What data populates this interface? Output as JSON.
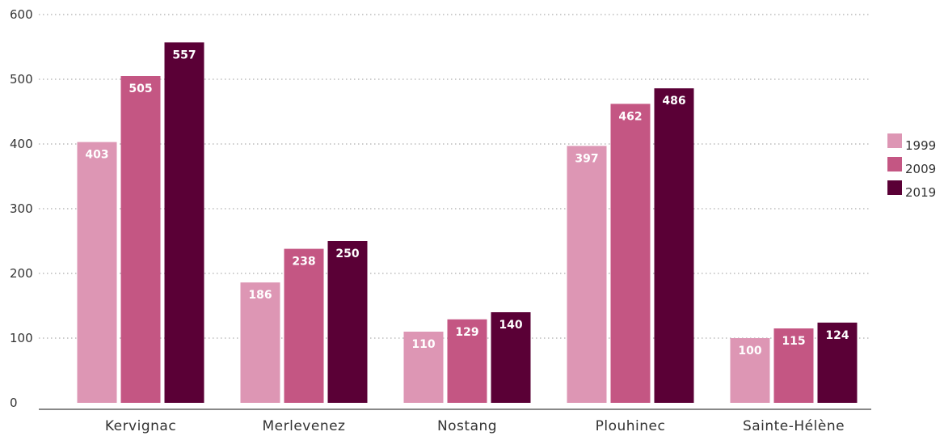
{
  "chart_data": {
    "type": "bar",
    "title": "",
    "xlabel": "",
    "ylabel": "",
    "ylim": [
      0,
      600
    ],
    "yticks": [
      0,
      100,
      200,
      300,
      400,
      500,
      600
    ],
    "grid": true,
    "legend_position": "right",
    "categories": [
      "Kervignac",
      "Merlevenez",
      "Nostang",
      "Plouhinec",
      "Sainte-Hélène"
    ],
    "series": [
      {
        "name": "1999",
        "color": "#dd96b4",
        "values": [
          403,
          186,
          110,
          397,
          100
        ]
      },
      {
        "name": "2009",
        "color": "#c45683",
        "values": [
          505,
          238,
          129,
          462,
          115
        ]
      },
      {
        "name": "2019",
        "color": "#5a0036",
        "values": [
          557,
          250,
          140,
          486,
          124
        ]
      }
    ]
  }
}
